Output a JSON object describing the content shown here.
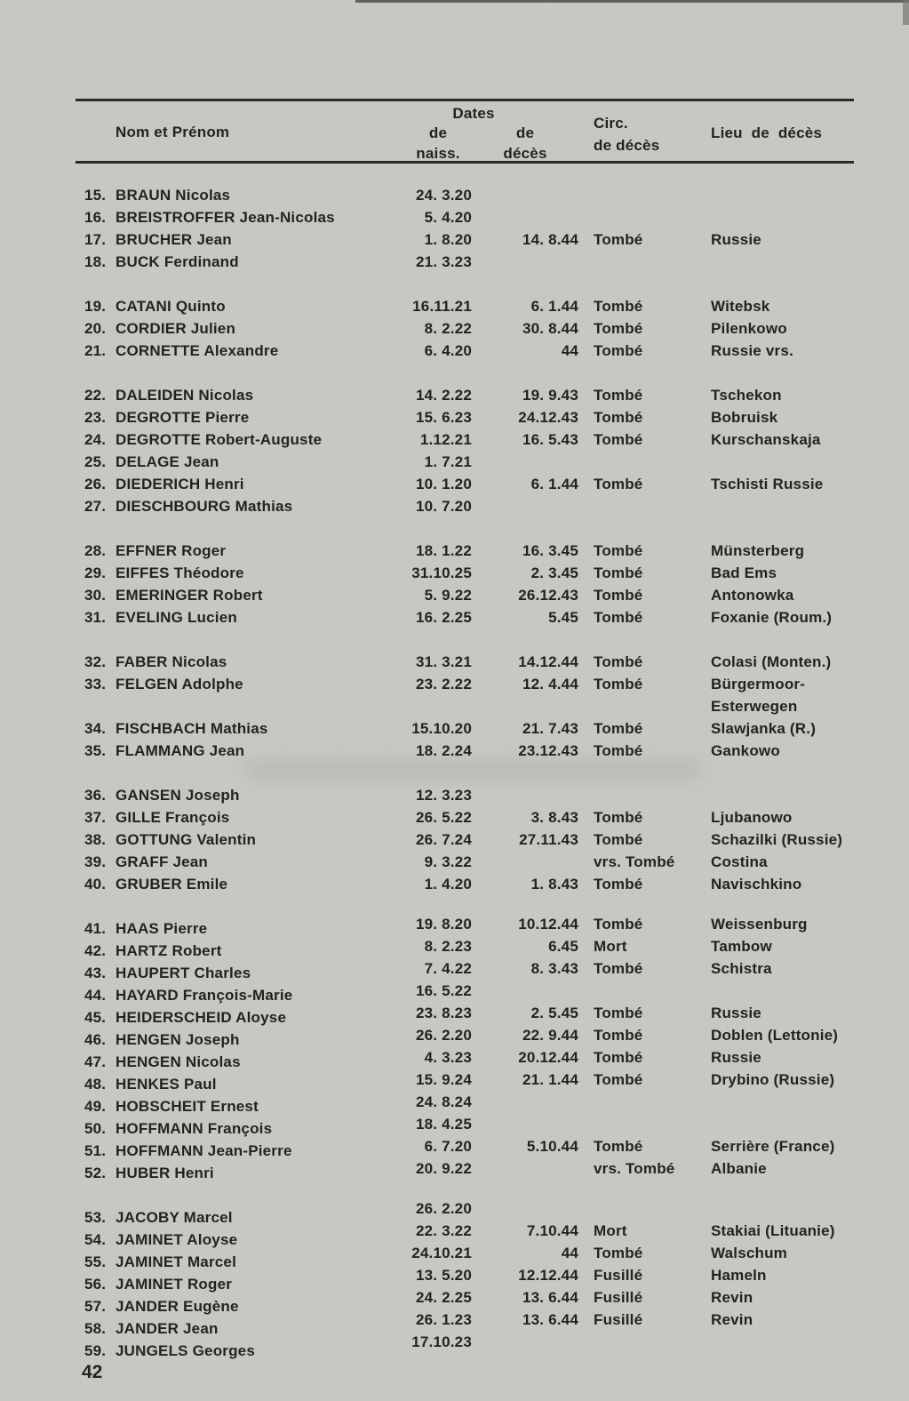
{
  "page": {
    "number": "42"
  },
  "colors": {
    "paper": "#c9c8c4",
    "ink": "#1c1b19"
  },
  "table": {
    "headers": {
      "name": "Nom et Prénom",
      "dates_group": "Dates",
      "birth_line1": "de",
      "birth_line2": "naiss.",
      "death_line1": "de",
      "death_line2": "décès",
      "circ_line1": "Circ.",
      "circ_line2": "de décès",
      "place": "Lieu de décès"
    },
    "groups": [
      {
        "rows": [
          {
            "num": "15.",
            "name": "BRAUN Nicolas",
            "naiss": "24. 3.20",
            "deces": "",
            "circ": "",
            "lieu": ""
          },
          {
            "num": "16.",
            "name": "BREISTROFFER Jean-Nicolas",
            "naiss": "5. 4.20",
            "deces": "",
            "circ": "",
            "lieu": ""
          },
          {
            "num": "17.",
            "name": "BRUCHER Jean",
            "naiss": "1. 8.20",
            "deces": "14. 8.44",
            "circ": "Tombé",
            "lieu": "Russie"
          },
          {
            "num": "18.",
            "name": "BUCK Ferdinand",
            "naiss": "21. 3.23",
            "deces": "",
            "circ": "",
            "lieu": ""
          }
        ]
      },
      {
        "rows": [
          {
            "num": "19.",
            "name": "CATANI Quinto",
            "naiss": "16.11.21",
            "deces": "6. 1.44",
            "circ": "Tombé",
            "lieu": "Witebsk"
          },
          {
            "num": "20.",
            "name": "CORDIER Julien",
            "naiss": "8. 2.22",
            "deces": "30. 8.44",
            "circ": "Tombé",
            "lieu": "Pilenkowo"
          },
          {
            "num": "21.",
            "name": "CORNETTE Alexandre",
            "naiss": "6. 4.20",
            "deces": "44",
            "circ": "Tombé",
            "lieu": "Russie vrs."
          }
        ]
      },
      {
        "rows": [
          {
            "num": "22.",
            "name": "DALEIDEN Nicolas",
            "naiss": "14. 2.22",
            "deces": "19. 9.43",
            "circ": "Tombé",
            "lieu": "Tschekon"
          },
          {
            "num": "23.",
            "name": "DEGROTTE Pierre",
            "naiss": "15. 6.23",
            "deces": "24.12.43",
            "circ": "Tombé",
            "lieu": "Bobruisk"
          },
          {
            "num": "24.",
            "name": "DEGROTTE Robert-Auguste",
            "naiss": "1.12.21",
            "deces": "16. 5.43",
            "circ": "Tombé",
            "lieu": "Kurschanskaja"
          },
          {
            "num": "25.",
            "name": "DELAGE Jean",
            "naiss": "1. 7.21",
            "deces": "",
            "circ": "",
            "lieu": ""
          },
          {
            "num": "26.",
            "name": "DIEDERICH Henri",
            "naiss": "10. 1.20",
            "deces": "6. 1.44",
            "circ": "Tombé",
            "lieu": "Tschisti Russie"
          },
          {
            "num": "27.",
            "name": "DIESCHBOURG Mathias",
            "naiss": "10. 7.20",
            "deces": "",
            "circ": "",
            "lieu": ""
          }
        ]
      },
      {
        "rows": [
          {
            "num": "28.",
            "name": "EFFNER Roger",
            "naiss": "18. 1.22",
            "deces": "16. 3.45",
            "circ": "Tombé",
            "lieu": "Münsterberg"
          },
          {
            "num": "29.",
            "name": "EIFFES Théodore",
            "naiss": "31.10.25",
            "deces": "2. 3.45",
            "circ": "Tombé",
            "lieu": "Bad Ems"
          },
          {
            "num": "30.",
            "name": "EMERINGER Robert",
            "naiss": "5. 9.22",
            "deces": "26.12.43",
            "circ": "Tombé",
            "lieu": "Antonowka"
          },
          {
            "num": "31.",
            "name": "EVELING Lucien",
            "naiss": "16. 2.25",
            "deces": "5.45",
            "circ": "Tombé",
            "lieu": "Foxanie (Roum.)"
          }
        ]
      },
      {
        "rows": [
          {
            "num": "32.",
            "name": "FABER Nicolas",
            "naiss": "31. 3.21",
            "deces": "14.12.44",
            "circ": "Tombé",
            "lieu": "Colasi (Monten.)"
          },
          {
            "num": "33.",
            "name": "FELGEN Adolphe",
            "naiss": "23. 2.22",
            "deces": "12. 4.44",
            "circ": "Tombé",
            "lieu": "Bürgermoor-\nEsterwegen"
          },
          {
            "num": "34.",
            "name": "FISCHBACH Mathias",
            "naiss": "15.10.20",
            "deces": "21. 7.43",
            "circ": "Tombé",
            "lieu": "Slawjanka (R.)"
          },
          {
            "num": "35.",
            "name": "FLAMMANG Jean",
            "naiss": "18. 2.24",
            "deces": "23.12.43",
            "circ": "Tombé",
            "lieu": "Gankowo"
          }
        ]
      },
      {
        "rows": [
          {
            "num": "36.",
            "name": "GANSEN Joseph",
            "naiss": "12. 3.23",
            "deces": "",
            "circ": "",
            "lieu": ""
          },
          {
            "num": "37.",
            "name": "GILLE François",
            "naiss": "26. 5.22",
            "deces": "3. 8.43",
            "circ": "Tombé",
            "lieu": "Ljubanowo"
          },
          {
            "num": "38.",
            "name": "GOTTUNG Valentin",
            "naiss": "26. 7.24",
            "deces": "27.11.43",
            "circ": "Tombé",
            "lieu": "Schazilki (Russie)"
          },
          {
            "num": "39.",
            "name": "GRAFF Jean",
            "naiss": "9. 3.22",
            "deces": "",
            "circ": "vrs. Tombé",
            "lieu": "Costina"
          },
          {
            "num": "40.",
            "name": "GRUBER Emile",
            "naiss": "1. 4.20",
            "deces": "1. 8.43",
            "circ": "Tombé",
            "lieu": "Navischkino"
          }
        ]
      },
      {
        "rows": [
          {
            "num": "41.",
            "name": "HAAS Pierre",
            "naiss": "19. 8.20",
            "deces": "10.12.44",
            "circ": "Tombé",
            "lieu": "Weissenburg"
          },
          {
            "num": "42.",
            "name": "HARTZ Robert",
            "naiss": "8. 2.23",
            "deces": "6.45",
            "circ": "Mort",
            "lieu": "Tambow"
          },
          {
            "num": "43.",
            "name": "HAUPERT Charles",
            "naiss": "7. 4.22",
            "deces": "8. 3.43",
            "circ": "Tombé",
            "lieu": "Schistra"
          },
          {
            "num": "44.",
            "name": "HAYARD François-Marie",
            "naiss": "16. 5.22",
            "deces": "",
            "circ": "",
            "lieu": ""
          },
          {
            "num": "45.",
            "name": "HEIDERSCHEID Aloyse",
            "naiss": "23. 8.23",
            "deces": "2. 5.45",
            "circ": "Tombé",
            "lieu": "Russie"
          },
          {
            "num": "46.",
            "name": "HENGEN Joseph",
            "naiss": "26. 2.20",
            "deces": "22. 9.44",
            "circ": "Tombé",
            "lieu": "Doblen (Lettonie)"
          },
          {
            "num": "47.",
            "name": "HENGEN Nicolas",
            "naiss": "4. 3.23",
            "deces": "20.12.44",
            "circ": "Tombé",
            "lieu": "Russie"
          },
          {
            "num": "48.",
            "name": "HENKES Paul",
            "naiss": "15. 9.24",
            "deces": "21. 1.44",
            "circ": "Tombé",
            "lieu": "Drybino (Russie)"
          },
          {
            "num": "49.",
            "name": "HOBSCHEIT Ernest",
            "naiss": "24. 8.24",
            "deces": "",
            "circ": "",
            "lieu": ""
          },
          {
            "num": "50.",
            "name": "HOFFMANN François",
            "naiss": "18. 4.25",
            "deces": "",
            "circ": "",
            "lieu": ""
          },
          {
            "num": "51.",
            "name": "HOFFMANN Jean-Pierre",
            "naiss": "6. 7.20",
            "deces": "5.10.44",
            "circ": "Tombé",
            "lieu": "Serrière (France)"
          },
          {
            "num": "52.",
            "name": "HUBER Henri",
            "naiss": "20. 9.22",
            "deces": "",
            "circ": "vrs. Tombé",
            "lieu": "Albanie"
          }
        ]
      },
      {
        "rows": [
          {
            "num": "53.",
            "name": "JACOBY Marcel",
            "naiss": "26. 2.20",
            "deces": "",
            "circ": "",
            "lieu": ""
          },
          {
            "num": "54.",
            "name": "JAMINET Aloyse",
            "naiss": "22. 3.22",
            "deces": "7.10.44",
            "circ": "Mort",
            "lieu": "Stakiai (Lituanie)"
          },
          {
            "num": "55.",
            "name": "JAMINET Marcel",
            "naiss": "24.10.21",
            "deces": "44",
            "circ": "Tombé",
            "lieu": "Walschum"
          },
          {
            "num": "56.",
            "name": "JAMINET Roger",
            "naiss": "13. 5.20",
            "deces": "12.12.44",
            "circ": "Fusillé",
            "lieu": "Hameln"
          },
          {
            "num": "57.",
            "name": "JANDER Eugène",
            "naiss": "24. 2.25",
            "deces": "13. 6.44",
            "circ": "Fusillé",
            "lieu": "Revin"
          },
          {
            "num": "58.",
            "name": "JANDER Jean",
            "naiss": "26. 1.23",
            "deces": "13. 6.44",
            "circ": "Fusillé",
            "lieu": "Revin"
          },
          {
            "num": "59.",
            "name": "JUNGELS Georges",
            "naiss": "17.10.23",
            "deces": "",
            "circ": "",
            "lieu": ""
          }
        ]
      }
    ]
  }
}
